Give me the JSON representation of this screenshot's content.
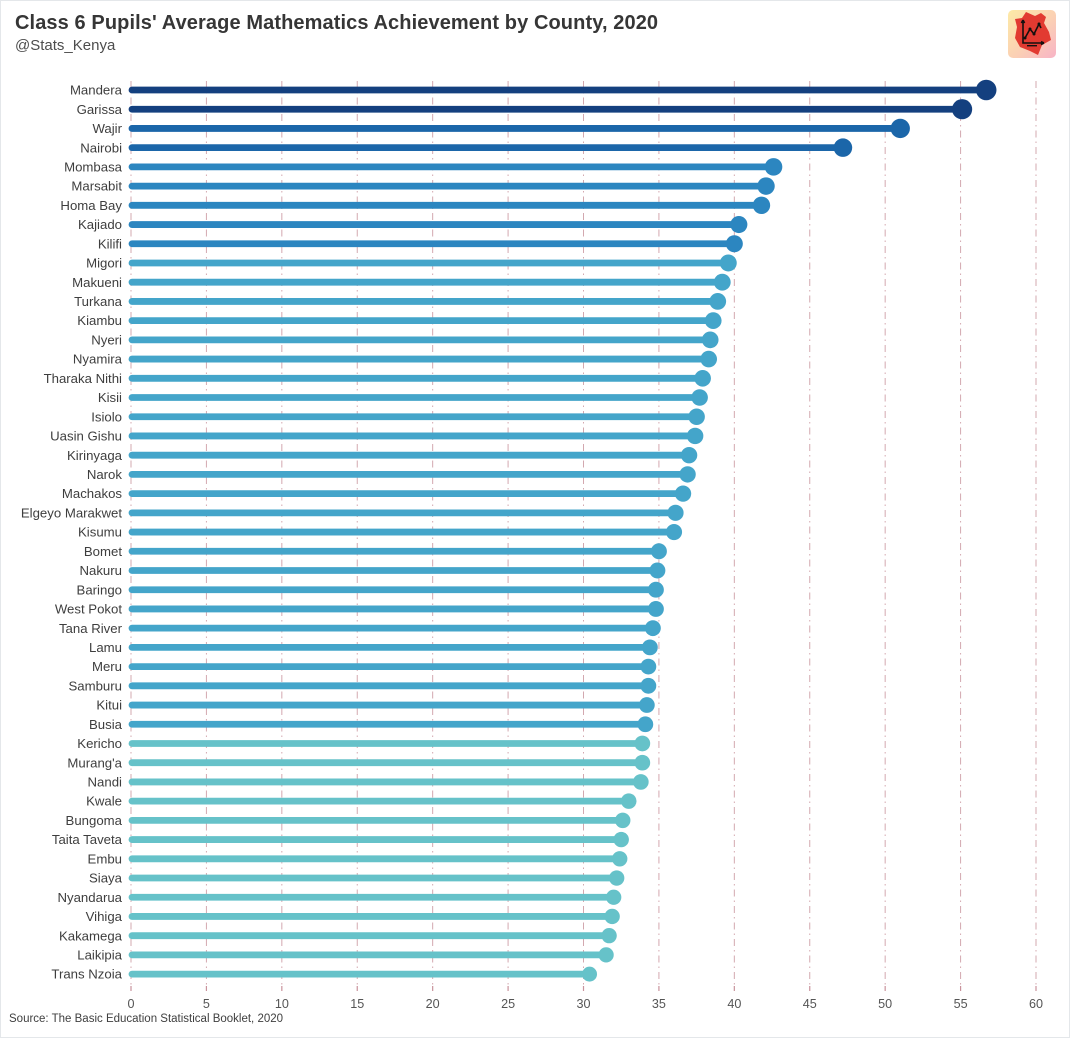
{
  "header": {
    "title": "Class 6 Pupils' Average Mathematics Achievement by County, 2020",
    "subtitle": "@Stats_Kenya"
  },
  "source": "Source: The Basic Education Statistical Booklet, 2020",
  "chart_data": {
    "type": "bar",
    "style": "lollipop",
    "orientation": "horizontal",
    "title": "Class 6 Pupils' Average Mathematics Achievement by County, 2020",
    "xlabel": "",
    "ylabel": "",
    "xlim": [
      0,
      60
    ],
    "xticks": [
      0,
      5,
      10,
      15,
      20,
      25,
      30,
      35,
      40,
      45,
      50,
      55,
      60
    ],
    "grid": "vertical-dash-dot",
    "gridline_color": "#c9939c",
    "axis_text_color": "#555555",
    "categories": [
      "Mandera",
      "Garissa",
      "Wajir",
      "Nairobi",
      "Mombasa",
      "Marsabit",
      "Homa Bay",
      "Kajiado",
      "Kilifi",
      "Migori",
      "Makueni",
      "Turkana",
      "Kiambu",
      "Nyeri",
      "Nyamira",
      "Tharaka Nithi",
      "Kisii",
      "Isiolo",
      "Uasin Gishu",
      "Kirinyaga",
      "Narok",
      "Machakos",
      "Elgeyo Marakwet",
      "Kisumu",
      "Bomet",
      "Nakuru",
      "Baringo",
      "West Pokot",
      "Tana River",
      "Lamu",
      "Meru",
      "Samburu",
      "Kitui",
      "Busia",
      "Kericho",
      "Murang'a",
      "Nandi",
      "Kwale",
      "Bungoma",
      "Taita Taveta",
      "Embu",
      "Siaya",
      "Nyandarua",
      "Vihiga",
      "Kakamega",
      "Laikipia",
      "Trans Nzoia"
    ],
    "values": [
      56.7,
      55.1,
      51.0,
      47.2,
      42.6,
      42.1,
      41.8,
      40.3,
      40.0,
      39.6,
      39.2,
      38.9,
      38.6,
      38.4,
      38.3,
      37.9,
      37.7,
      37.5,
      37.4,
      37.0,
      36.9,
      36.6,
      36.1,
      36.0,
      35.0,
      34.9,
      34.8,
      34.8,
      34.6,
      34.4,
      34.3,
      34.3,
      34.2,
      34.1,
      33.9,
      33.9,
      33.8,
      33.0,
      32.6,
      32.5,
      32.4,
      32.2,
      32.0,
      31.9,
      31.7,
      31.5,
      30.4
    ],
    "color_bands": [
      {
        "min": 54,
        "color": "#14407f"
      },
      {
        "min": 46,
        "color": "#1b66a9"
      },
      {
        "min": 40,
        "color": "#2c86c0"
      },
      {
        "min": 34,
        "color": "#44a5ca"
      },
      {
        "min": 0,
        "color": "#66c2c9"
      }
    ]
  }
}
